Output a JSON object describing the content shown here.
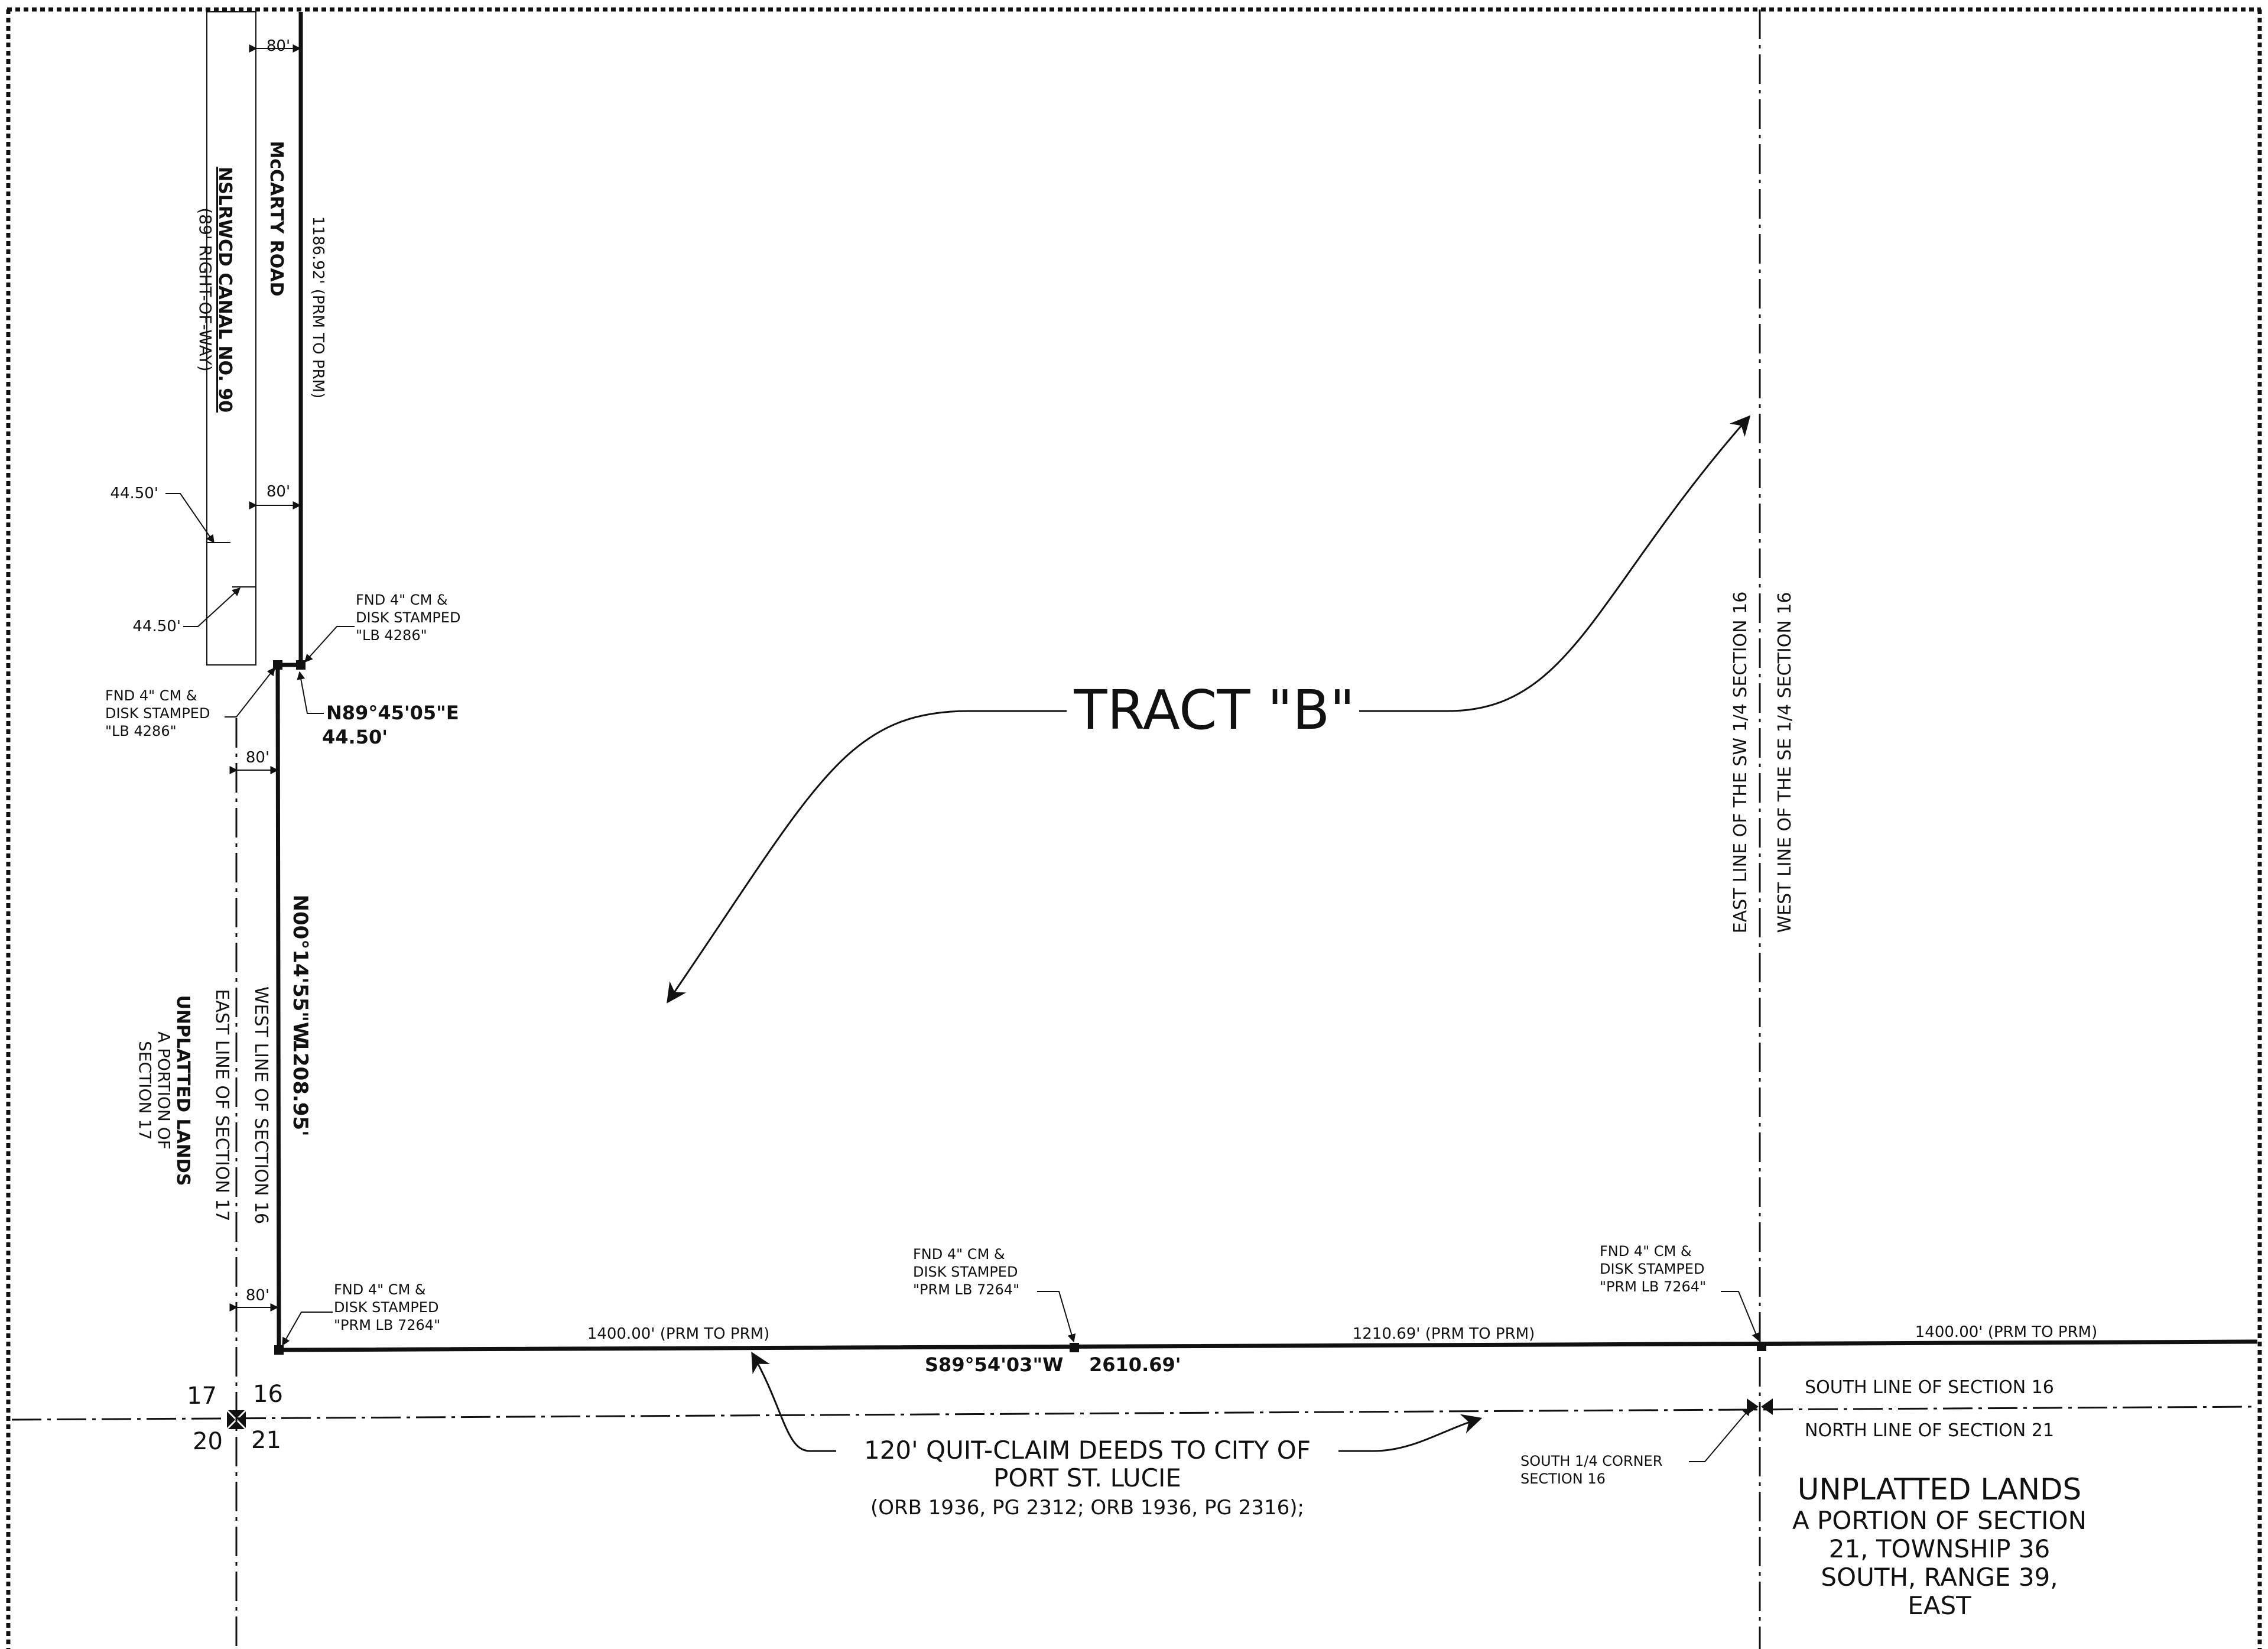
{
  "tract_label": "TRACT \"B\"",
  "road": {
    "name": "McCARTY ROAD",
    "length_label": "1186.92' (PRM TO PRM)",
    "width_top": "80'",
    "width_mid": "80'"
  },
  "canal": {
    "name": "NSLRWCD CANAL NO. 90",
    "row": "(89' RIGHT-OF-WAY)",
    "dim_a": "44.50'",
    "dim_b": "44.50'"
  },
  "monuments": {
    "top_right": [
      "FND 4\" CM &",
      "DISK STAMPED",
      "\"LB 4286\""
    ],
    "top_left": [
      "FND 4\" CM &",
      "DISK STAMPED",
      "\"LB 4286\""
    ],
    "bottom_left": [
      "FND 4\" CM &",
      "DISK STAMPED",
      "\"PRM LB 7264\""
    ],
    "bottom_mid": [
      "FND 4\" CM &",
      "DISK STAMPED",
      "\"PRM LB 7264\""
    ],
    "bottom_right": [
      "FND 4\" CM &",
      "DISK STAMPED",
      "\"PRM LB 7264\""
    ]
  },
  "courses": {
    "top_bearing": "N89°45'05\"E",
    "top_distance": "44.50'",
    "west_bearing": "N00°14'55\"W",
    "west_distance": "1208.95'",
    "south_bearing": "S89°54'03\"W",
    "south_distance": "2610.69'"
  },
  "offsets": {
    "west_80": "80'",
    "south_80": "80'"
  },
  "segments": {
    "seg1": "1400.00' (PRM TO PRM)",
    "seg2": "1210.69' (PRM TO PRM)",
    "seg3": "1400.00' (PRM TO PRM)"
  },
  "section_numbers": {
    "nw": "17",
    "ne": "16",
    "sw": "20",
    "se": "21"
  },
  "line_labels": {
    "west_sec16": "WEST LINE OF SECTION 16",
    "east_sec17": "EAST LINE OF SECTION 17",
    "east_sw14": "EAST LINE OF THE SW 1/4 SECTION 16",
    "west_se14": "WEST LINE OF THE SE 1/4 SECTION 16",
    "south_sec16": "SOUTH LINE OF SECTION 16",
    "north_sec21": "NORTH LINE OF SECTION 21"
  },
  "unplatted_17": [
    "UNPLATTED LANDS",
    "A PORTION OF",
    "SECTION 17"
  ],
  "unplatted_21": [
    "UNPLATTED LANDS",
    "A PORTION OF SECTION",
    "21, TOWNSHIP 36",
    "SOUTH, RANGE 39,",
    "EAST"
  ],
  "quitclaim": [
    "120' QUIT-CLAIM DEEDS TO CITY OF",
    "PORT ST. LUCIE",
    "(ORB 1936, PG 2312; ORB 1936, PG 2316);"
  ],
  "south_corner": [
    "SOUTH 1/4 CORNER",
    "SECTION 16"
  ]
}
